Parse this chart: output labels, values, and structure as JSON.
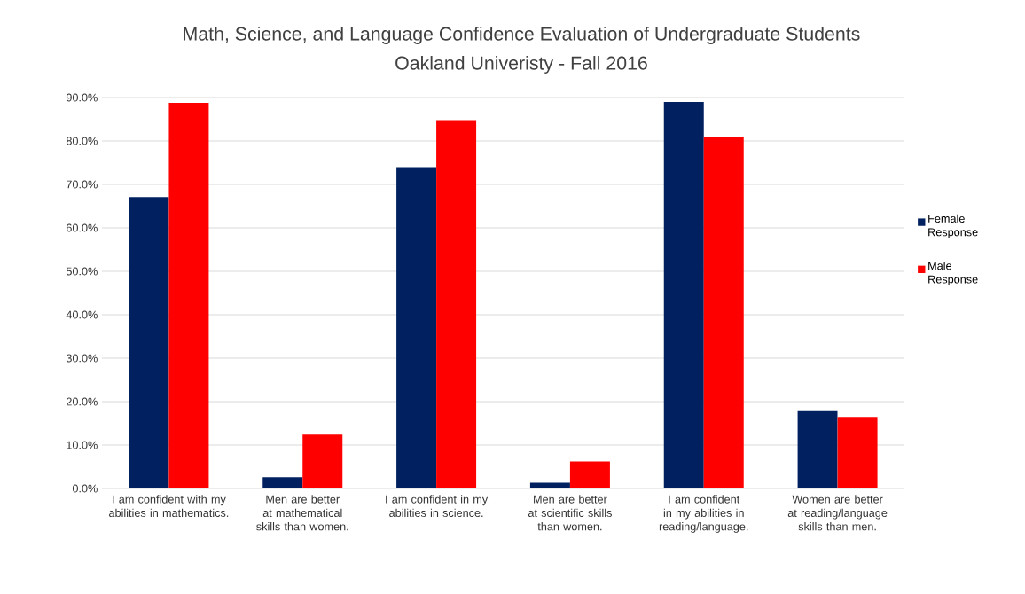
{
  "chart_data": {
    "type": "bar",
    "title": "Math, Science, and Language Confidence Evaluation of Undergraduate Students",
    "subtitle": "Oakland Univeristy - Fall 2016",
    "categories": [
      "I am confident with my abilities in mathematics.",
      "Men are better at mathematical skills than women.",
      "I am confident in my abilities in science.",
      "Men are better at scientific skills than women.",
      "I am confident in my abilities in reading/language.",
      "Women are better at reading/language skills than men."
    ],
    "series": [
      {
        "name": "Female Response",
        "color": "#002060",
        "values": [
          67.1,
          2.6,
          74.0,
          1.3,
          89.0,
          17.8
        ]
      },
      {
        "name": "Male Response",
        "color": "#ff0000",
        "values": [
          88.8,
          12.4,
          84.8,
          6.2,
          80.8,
          16.5
        ]
      }
    ],
    "ylim": [
      0,
      90
    ],
    "yticks": [
      {
        "value": 0,
        "label": "0.0%"
      },
      {
        "value": 10,
        "label": "10.0%"
      },
      {
        "value": 20,
        "label": "20.0%"
      },
      {
        "value": 30,
        "label": "30.0%"
      },
      {
        "value": 40,
        "label": "40.0%"
      },
      {
        "value": 50,
        "label": "50.0%"
      },
      {
        "value": 60,
        "label": "60.0%"
      },
      {
        "value": 70,
        "label": "70.0%"
      },
      {
        "value": 80,
        "label": "80.0%"
      },
      {
        "value": 90,
        "label": "90.0%"
      }
    ],
    "grid": "y",
    "legend": "right"
  }
}
